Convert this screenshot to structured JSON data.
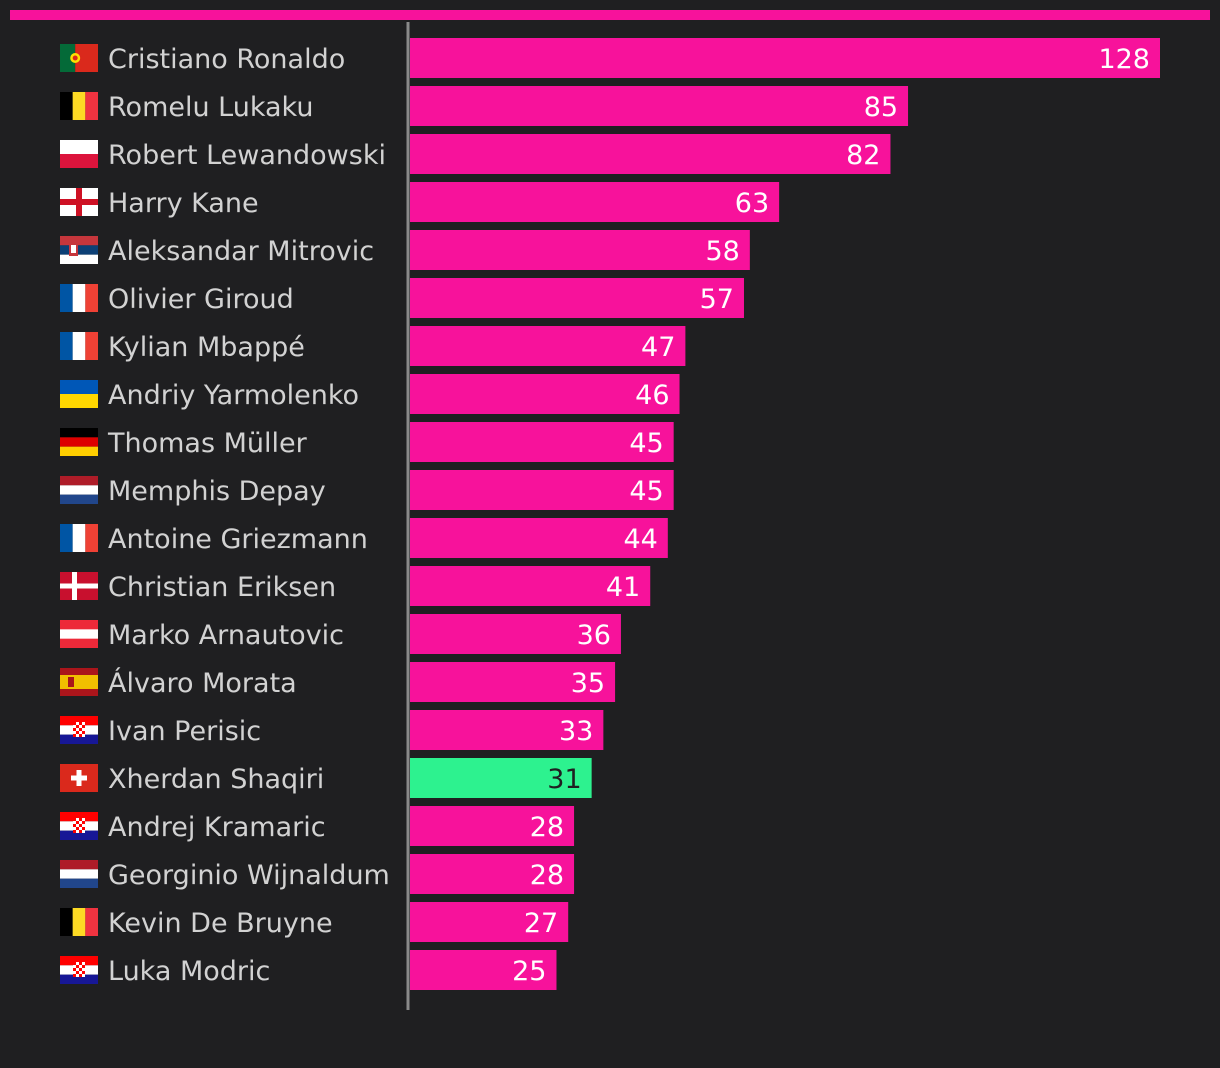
{
  "colors": {
    "bar": "#f7129b",
    "highlight": "#2df28f",
    "background": "#1f1f21",
    "axis": "#8a8a8a",
    "label": "#d2d2d2"
  },
  "chart_data": {
    "type": "bar",
    "orientation": "horizontal",
    "title": "",
    "xlabel": "",
    "ylabel": "",
    "xlim": [
      0,
      128
    ],
    "grid": false,
    "legend": "none",
    "highlight_index": 15,
    "categories": [
      "Cristiano Ronaldo",
      "Romelu Lukaku",
      "Robert Lewandowski",
      "Harry Kane",
      "Aleksandar Mitrovic",
      "Olivier Giroud",
      "Kylian Mbappé",
      "Andriy Yarmolenko",
      "Thomas Müller",
      "Memphis Depay",
      "Antoine Griezmann",
      "Christian Eriksen",
      "Marko Arnautovic",
      "Álvaro Morata",
      "Ivan Perisic",
      "Xherdan Shaqiri",
      "Andrej Kramaric",
      "Georginio Wijnaldum",
      "Kevin De Bruyne",
      "Luka Modric"
    ],
    "flags": [
      "portugal-flag-icon",
      "belgium-flag-icon",
      "poland-flag-icon",
      "england-flag-icon",
      "serbia-flag-icon",
      "france-flag-icon",
      "france-flag-icon",
      "ukraine-flag-icon",
      "germany-flag-icon",
      "netherlands-flag-icon",
      "france-flag-icon",
      "denmark-flag-icon",
      "austria-flag-icon",
      "spain-flag-icon",
      "croatia-flag-icon",
      "switzerland-flag-icon",
      "croatia-flag-icon",
      "netherlands-flag-icon",
      "belgium-flag-icon",
      "croatia-flag-icon"
    ],
    "values": [
      128,
      85,
      82,
      63,
      58,
      57,
      47,
      46,
      45,
      45,
      44,
      41,
      36,
      35,
      33,
      31,
      28,
      28,
      27,
      25
    ]
  }
}
